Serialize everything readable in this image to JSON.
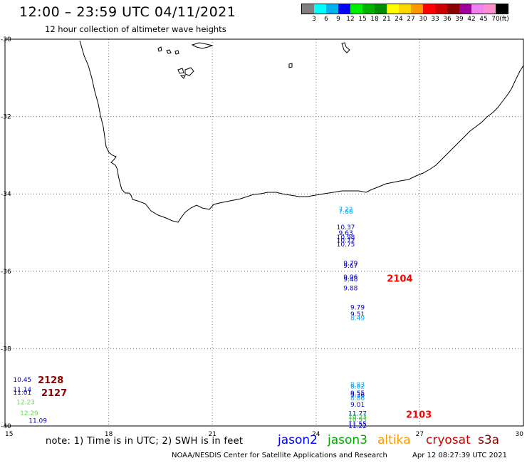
{
  "header": {
    "title": "12:00 – 23:59 UTC 04/11/2021",
    "subtitle": "12 hour collection of altimeter wave heights"
  },
  "legend": {
    "colors": [
      "#808080",
      "#00ffff",
      "#00b2ee",
      "#0000ff",
      "#00ee00",
      "#00b200",
      "#008b00",
      "#ffff00",
      "#ffd700",
      "#ff9900",
      "#ff0000",
      "#cd0000",
      "#8b0000",
      "#9b009b",
      "#ee82ee",
      "#ff90d0",
      "#000000"
    ],
    "labels": [
      "3",
      "6",
      "9",
      "12",
      "15",
      "18",
      "21",
      "24",
      "27",
      "30",
      "33",
      "36",
      "39",
      "42",
      "45",
      "70"
    ],
    "unit": "(ft)"
  },
  "axes": {
    "x_ticks": [
      "15",
      "18",
      "21",
      "24",
      "27",
      "30"
    ],
    "y_ticks": [
      "-30",
      "-32",
      "-34",
      "-36",
      "-38",
      "-40"
    ]
  },
  "observations": [
    {
      "text": "7.22",
      "color": "#00aaff",
      "lon": 24.86,
      "lat": -34.4
    },
    {
      "text": "7.68",
      "color": "#00aaff",
      "lon": 24.86,
      "lat": -34.46
    },
    {
      "text": "10.37",
      "color": "#0000cc",
      "lon": 24.86,
      "lat": -34.86
    },
    {
      "text": "9.63",
      "color": "#0000cc",
      "lon": 24.86,
      "lat": -35.01
    },
    {
      "text": "10.98",
      "color": "#0000cc",
      "lon": 24.86,
      "lat": -35.12
    },
    {
      "text": "10.72",
      "color": "#0000cc",
      "lon": 24.86,
      "lat": -35.2
    },
    {
      "text": "10.75",
      "color": "#0000cc",
      "lon": 24.86,
      "lat": -35.3
    },
    {
      "text": "9.79",
      "color": "#0000cc",
      "lon": 25.0,
      "lat": -35.79
    },
    {
      "text": "9.67",
      "color": "#0000cc",
      "lon": 25.0,
      "lat": -35.86
    },
    {
      "text": "9.06",
      "color": "#0000cc",
      "lon": 25.0,
      "lat": -36.15
    },
    {
      "text": "9.48",
      "color": "#0000cc",
      "lon": 25.0,
      "lat": -36.21
    },
    {
      "text": "9.88",
      "color": "#0000cc",
      "lon": 25.0,
      "lat": -36.44
    },
    {
      "text": "9.79",
      "color": "#0000cc",
      "lon": 25.2,
      "lat": -36.93
    },
    {
      "text": "9.51",
      "color": "#0000cc",
      "lon": 25.2,
      "lat": -37.11
    },
    {
      "text": "8.49",
      "color": "#00aaff",
      "lon": 25.2,
      "lat": -37.21
    },
    {
      "text": "8.83",
      "color": "#00aaff",
      "lon": 25.2,
      "lat": -38.93
    },
    {
      "text": "8.82",
      "color": "#00aaff",
      "lon": 25.2,
      "lat": -38.98
    },
    {
      "text": "9.55",
      "color": "#0000cc",
      "lon": 25.2,
      "lat": -39.15
    },
    {
      "text": "9.36",
      "color": "#0000cc",
      "lon": 25.2,
      "lat": -39.2
    },
    {
      "text": "8.86",
      "color": "#00aaff",
      "lon": 25.2,
      "lat": -39.28
    },
    {
      "text": "9.01",
      "color": "#0000cc",
      "lon": 25.2,
      "lat": -39.45
    },
    {
      "text": "11.77",
      "color": "#0000cc",
      "lon": 25.2,
      "lat": -39.68
    },
    {
      "text": "10.23",
      "color": "#22cc22",
      "lon": 25.2,
      "lat": -39.76
    },
    {
      "text": "10.93",
      "color": "#22cc22",
      "lon": 25.2,
      "lat": -39.83
    },
    {
      "text": "11.55",
      "color": "#0000cc",
      "lon": 25.2,
      "lat": -39.95
    },
    {
      "text": "11.22",
      "color": "#0000cc",
      "lon": 25.2,
      "lat": -40.0
    },
    {
      "text": "10.45",
      "color": "#0000cc",
      "lon": 15.5,
      "lat": -38.8
    },
    {
      "text": "11.14",
      "color": "#0000cc",
      "lon": 15.5,
      "lat": -39.06
    },
    {
      "text": "11.01",
      "color": "#0000cc",
      "lon": 15.5,
      "lat": -39.13
    },
    {
      "text": "12.23",
      "color": "#66dd55",
      "lon": 15.6,
      "lat": -39.38
    },
    {
      "text": "12.29",
      "color": "#66dd55",
      "lon": 15.7,
      "lat": -39.67
    },
    {
      "text": "11.09",
      "color": "#0000cc",
      "lon": 15.95,
      "lat": -39.86
    }
  ],
  "passes": [
    {
      "text": "2104",
      "color": "#ff0000",
      "lon": 26.05,
      "lat": -36.18
    },
    {
      "text": "2103",
      "color": "#ff0000",
      "lon": 26.6,
      "lat": -39.7
    },
    {
      "text": "2128",
      "color": "#8b0000",
      "lon": 15.95,
      "lat": -38.8
    },
    {
      "text": "2127",
      "color": "#8b0000",
      "lon": 16.05,
      "lat": -39.13
    }
  ],
  "note": "note:  1) Time is in UTC;  2) SWH is in feet",
  "missions": [
    {
      "name": "jason2",
      "color": "#0000ff"
    },
    {
      "name": "jason3",
      "color": "#00aa00"
    },
    {
      "name": "altika",
      "color": "#ff9900"
    },
    {
      "name": "cryosat",
      "color": "#cc0000"
    },
    {
      "name": "s3a",
      "color": "#8b0000"
    }
  ],
  "footer": {
    "credit": "NOAA/NESDIS Center for Satellite Applications and Research",
    "timestamp": "Apr 12 08:27:39 UTC 2021"
  }
}
